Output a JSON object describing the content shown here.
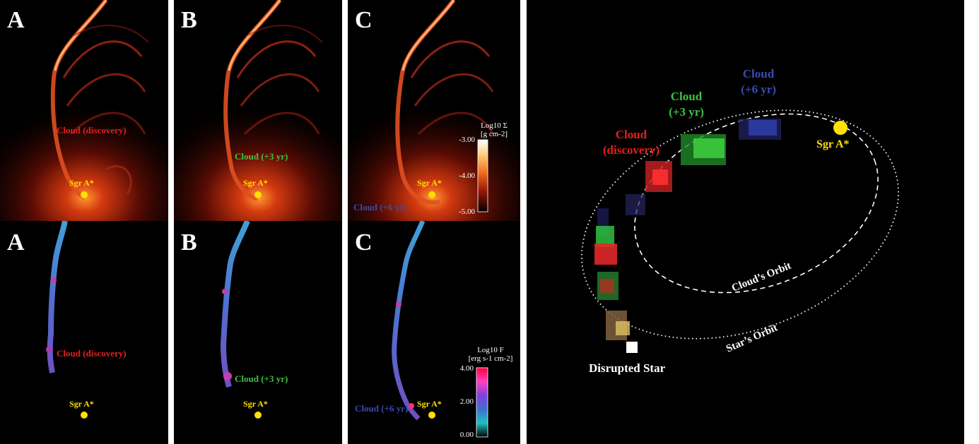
{
  "panels": {
    "top": [
      {
        "label": "A",
        "cloud": "Cloud (discovery)",
        "sgr": "Sgr A*"
      },
      {
        "label": "B",
        "cloud": "Cloud (+3 yr)",
        "sgr": "Sgr A*"
      },
      {
        "label": "C",
        "cloud": "Cloud (+6 yr)",
        "sgr": "Sgr A*"
      }
    ],
    "bottom": [
      {
        "label": "A",
        "cloud": "Cloud (discovery)",
        "sgr": "Sgr A*"
      },
      {
        "label": "B",
        "cloud": "Cloud (+3 yr)",
        "sgr": "Sgr A*"
      },
      {
        "label": "C",
        "cloud": "Cloud (+6 yr)",
        "sgr": "Sgr A*"
      }
    ]
  },
  "colorbar_density": {
    "title_line1": "Log10 Σ",
    "title_line2": "[g cm-2]",
    "ticks": [
      "-3.00",
      "-4.00",
      "-5.00"
    ]
  },
  "colorbar_flux": {
    "title_line1": "Log10 F",
    "title_line2": "[erg s-1 cm-2]",
    "ticks": [
      "4.00",
      "2.00",
      "0.00"
    ]
  },
  "orbit_panel": {
    "cloud_discovery_line1": "Cloud",
    "cloud_discovery_line2": "(discovery)",
    "cloud_3yr_line1": "Cloud",
    "cloud_3yr_line2": "(+3 yr)",
    "cloud_6yr_line1": "Cloud",
    "cloud_6yr_line2": "(+6 yr)",
    "sgr": "Sgr A*",
    "clouds_orbit": "Cloud’s Orbit",
    "stars_orbit": "Star’s Orbit",
    "disrupted_star": "Disrupted Star"
  },
  "colors": {
    "discovery": "#e02020",
    "plus3": "#40c040",
    "plus6": "#3a4ab0",
    "sgr": "#ffe000"
  }
}
